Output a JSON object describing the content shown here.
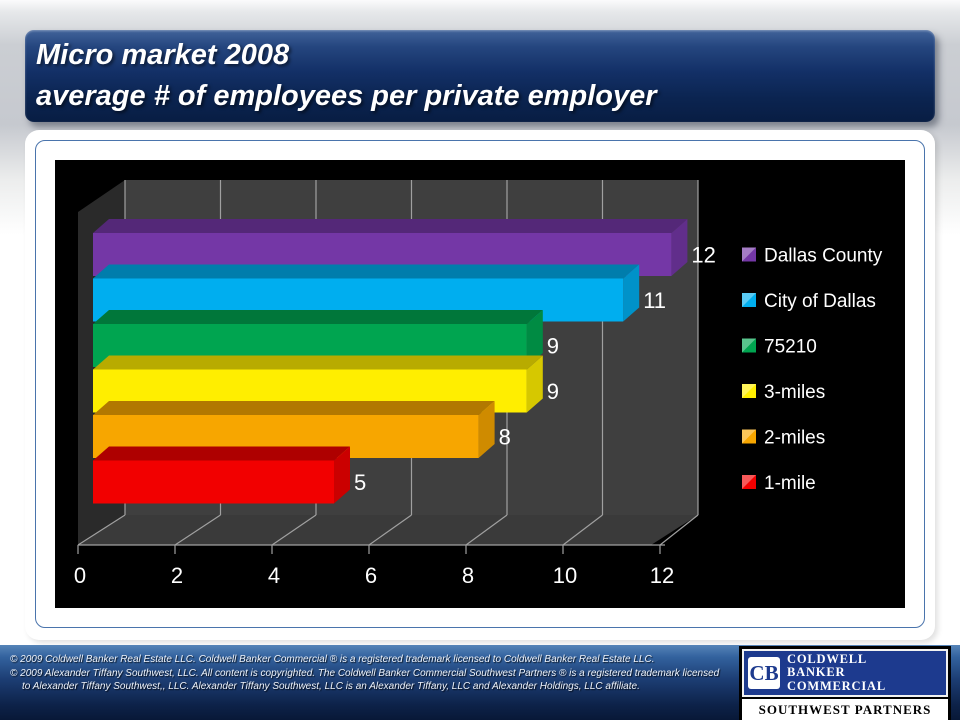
{
  "slide": {
    "title_line1": "Micro market 2008",
    "title_line2": "average # of employees per private employer"
  },
  "chart_data": {
    "type": "bar",
    "orientation": "horizontal",
    "style": "3d",
    "title": "",
    "xlabel": "",
    "ylabel": "",
    "categories": [
      "Dallas County",
      "City of Dallas",
      "75210",
      "3-miles",
      "2-miles",
      "1-mile"
    ],
    "values": [
      12,
      11,
      9,
      9,
      8,
      5
    ],
    "colors": [
      "#7437A6",
      "#00AEEF",
      "#00A550",
      "#FFEE00",
      "#F7A600",
      "#F20000"
    ],
    "x_ticks": [
      0,
      2,
      4,
      6,
      8,
      10,
      12
    ],
    "xlim": [
      0,
      12
    ],
    "grid": true,
    "value_labels": true,
    "legend_position": "right",
    "plot_background": "#000000",
    "wall_color": "#3F3F3F",
    "side_wall_color": "#2A2A2A",
    "floor_color": "#3A3A3A",
    "gridline_color": "#A0A0A0",
    "text_color": "#FFFFFF"
  },
  "footer": {
    "line1": "© 2009 Coldwell Banker Real Estate LLC. Coldwell Banker Commercial ® is a registered trademark licensed to Coldwell Banker Real Estate LLC.",
    "line2": "© 2009 Alexander Tiffany Southwest, LLC. All content is copyrighted. The Coldwell Banker Commercial Southwest Partners ® is a registered trademark licensed",
    "line3": "to Alexander Tiffany Southwest,, LLC.  Alexander Tiffany Southwest, LLC is an Alexander Tiffany, LLC and Alexander Holdings, LLC affiliate.",
    "logo": {
      "monogram": "CB",
      "brand_line1": "COLDWELL",
      "brand_line2": "BANKER",
      "brand_line3": "COMMERCIAL",
      "subbrand": "SOUTHWEST PARTNERS"
    }
  }
}
